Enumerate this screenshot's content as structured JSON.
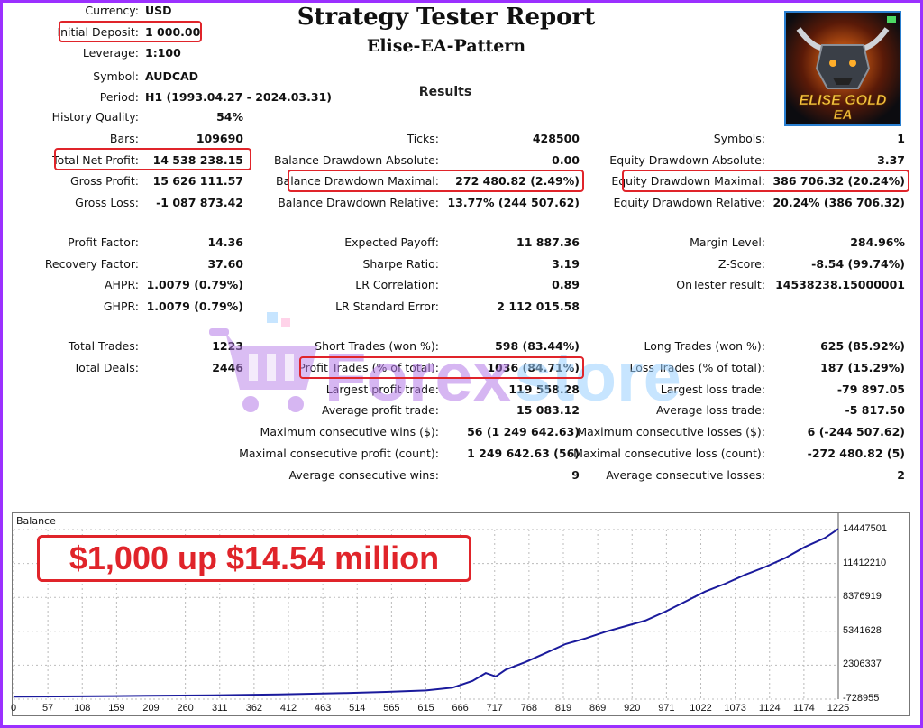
{
  "header": {
    "title": "Strategy Tester Report",
    "subtitle": "Elise-EA-Pattern",
    "results": "Results"
  },
  "meta": [
    {
      "label": "Currency:",
      "value": "USD"
    },
    {
      "label": "Initial Deposit:",
      "value": "1 000.00"
    },
    {
      "label": "Leverage:",
      "value": "1:100"
    },
    {
      "label": "Symbol:",
      "value": "AUDCAD"
    },
    {
      "label": "Period:",
      "value": "H1 (1993.04.27 - 2024.03.31)"
    },
    {
      "label": "History Quality:",
      "value": "54%"
    }
  ],
  "col1": [
    {
      "label": "Bars:",
      "value": "109690"
    },
    {
      "label": "Total Net Profit:",
      "value": "14 538 238.15"
    },
    {
      "label": "Gross Profit:",
      "value": "15 626 111.57"
    },
    {
      "label": "Gross Loss:",
      "value": "-1 087 873.42"
    },
    {
      "label": "Profit Factor:",
      "value": "14.36"
    },
    {
      "label": "Recovery Factor:",
      "value": "37.60"
    },
    {
      "label": "AHPR:",
      "value": "1.0079 (0.79%)"
    },
    {
      "label": "GHPR:",
      "value": "1.0079 (0.79%)"
    },
    {
      "label": "Total Trades:",
      "value": "1223"
    },
    {
      "label": "Total Deals:",
      "value": "2446"
    }
  ],
  "col2": [
    {
      "label": "Ticks:",
      "value": "428500"
    },
    {
      "label": "Balance Drawdown Absolute:",
      "value": "0.00"
    },
    {
      "label": "Balance Drawdown Maximal:",
      "value": "272 480.82 (2.49%)"
    },
    {
      "label": "Balance Drawdown Relative:",
      "value": "13.77% (244 507.62)"
    },
    {
      "label": "Expected Payoff:",
      "value": "11 887.36"
    },
    {
      "label": "Sharpe Ratio:",
      "value": "3.19"
    },
    {
      "label": "LR Correlation:",
      "value": "0.89"
    },
    {
      "label": "LR Standard Error:",
      "value": "2 112 015.58"
    },
    {
      "label": "Short Trades (won %):",
      "value": "598 (83.44%)"
    },
    {
      "label": "Profit Trades (% of total):",
      "value": "1036 (84.71%)"
    },
    {
      "label": "Largest profit trade:",
      "value": "119 558.28"
    },
    {
      "label": "Average profit trade:",
      "value": "15 083.12"
    },
    {
      "label": "Maximum consecutive wins ($):",
      "value": "56 (1 249 642.63)"
    },
    {
      "label": "Maximal consecutive profit (count):",
      "value": "1 249 642.63 (56)"
    },
    {
      "label": "Average consecutive wins:",
      "value": "9"
    }
  ],
  "col3": [
    {
      "label": "Symbols:",
      "value": "1"
    },
    {
      "label": "Equity Drawdown Absolute:",
      "value": "3.37"
    },
    {
      "label": "Equity Drawdown Maximal:",
      "value": "386 706.32 (20.24%)"
    },
    {
      "label": "Equity Drawdown Relative:",
      "value": "20.24% (386 706.32)"
    },
    {
      "label": "Margin Level:",
      "value": "284.96%"
    },
    {
      "label": "Z-Score:",
      "value": "-8.54 (99.74%)"
    },
    {
      "label": "OnTester result:",
      "value": "14538238.15000001"
    },
    {
      "label": "Long Trades (won %):",
      "value": "625 (85.92%)"
    },
    {
      "label": "Loss Trades (% of total):",
      "value": "187 (15.29%)"
    },
    {
      "label": "Largest loss trade:",
      "value": "-79 897.05"
    },
    {
      "label": "Average loss trade:",
      "value": "-5 817.50"
    },
    {
      "label": "Maximum consecutive losses ($):",
      "value": "6 (-244 507.62)"
    },
    {
      "label": "Maximal consecutive loss (count):",
      "value": "-272 480.82 (5)"
    },
    {
      "label": "Average consecutive losses:",
      "value": "2"
    }
  ],
  "logo": {
    "line1": "ELISE GOLD",
    "line2": "EA"
  },
  "watermark": {
    "text1": "Forex",
    "text2": "store"
  },
  "colors": {
    "highlight": "#e0242a",
    "line": "#1a1a9c",
    "frame": "#9b30ff"
  },
  "chart_data": {
    "type": "line",
    "title": "Balance",
    "callout": "$1,000 up $14.54 million",
    "x_ticks": [
      "0",
      "57",
      "108",
      "159",
      "209",
      "260",
      "311",
      "362",
      "412",
      "463",
      "514",
      "565",
      "615",
      "666",
      "717",
      "768",
      "819",
      "869",
      "920",
      "971",
      "1022",
      "1073",
      "1124",
      "1174",
      "1225"
    ],
    "y_ticks": [
      "14447501",
      "11412210",
      "8376919",
      "5341628",
      "2306337",
      "-728955"
    ],
    "ylim": [
      -728955,
      14447501
    ],
    "xlim": [
      0,
      1240
    ],
    "series": [
      {
        "x": [
          0,
          100,
          200,
          300,
          400,
          500,
          560,
          620,
          660,
          690,
          710,
          725,
          740,
          770,
          800,
          830,
          860,
          890,
          920,
          950,
          980,
          1010,
          1040,
          1070,
          1100,
          1130,
          1160,
          1190,
          1220,
          1240
        ],
        "y": [
          -500000,
          -480000,
          -430000,
          -380000,
          -300000,
          -180000,
          -80000,
          50000,
          300000,
          900000,
          1600000,
          1300000,
          1900000,
          2600000,
          3400000,
          4200000,
          4700000,
          5300000,
          5800000,
          6300000,
          7100000,
          8000000,
          8900000,
          9600000,
          10400000,
          11100000,
          11900000,
          12900000,
          13700000,
          14500000
        ]
      }
    ]
  }
}
